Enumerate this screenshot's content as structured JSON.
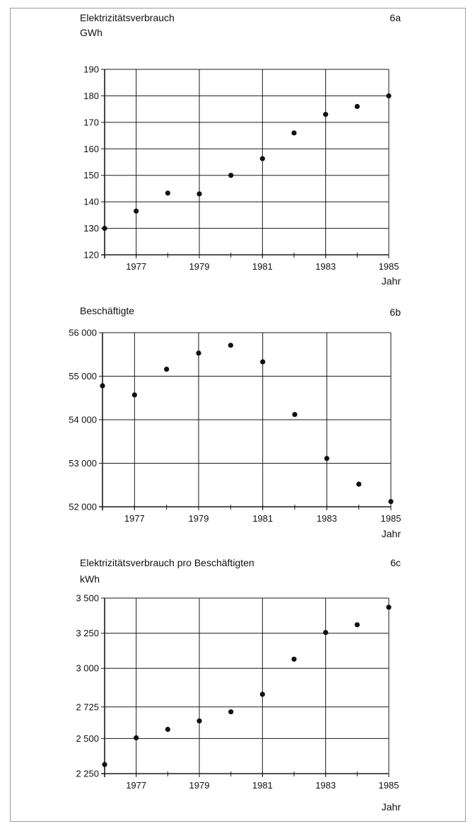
{
  "chart_data": [
    {
      "type": "scatter",
      "title": "Elektrizitätsverbrauch",
      "panel_label": "6a",
      "ylabel": "GWh",
      "xlabel": "Jahr",
      "x": [
        1976,
        1977,
        1978,
        1979,
        1980,
        1981,
        1982,
        1983,
        1984,
        1985
      ],
      "values": [
        130,
        136.5,
        143.3,
        143,
        150,
        156.3,
        166,
        173,
        176,
        180
      ],
      "ylim": [
        120,
        190
      ],
      "xlim": [
        1976,
        1985
      ],
      "yticks": [
        120,
        130,
        140,
        150,
        160,
        170,
        180,
        190
      ],
      "ytick_labels": [
        "120",
        "130",
        "140",
        "150",
        "160",
        "170",
        "180",
        "190"
      ],
      "xticks": [
        1977,
        1979,
        1981,
        1983,
        1985
      ],
      "xtick_labels": [
        "1977",
        "1979",
        "1981",
        "1983",
        "1985"
      ],
      "grid": true
    },
    {
      "type": "scatter",
      "title": "Beschäftigte",
      "panel_label": "6b",
      "ylabel": "",
      "xlabel": "Jahr",
      "x": [
        1976,
        1977,
        1978,
        1979,
        1980,
        1981,
        1982,
        1983,
        1984,
        1985
      ],
      "values": [
        54780,
        54570,
        55160,
        55530,
        55710,
        55330,
        54120,
        53110,
        52520,
        52120
      ],
      "ylim": [
        52000,
        56000
      ],
      "xlim": [
        1976,
        1985
      ],
      "yticks": [
        52000,
        53000,
        54000,
        55000,
        56000
      ],
      "ytick_labels": [
        "52 000",
        "53 000",
        "54 000",
        "55 000",
        "56 000"
      ],
      "xticks": [
        1977,
        1979,
        1981,
        1983,
        1985
      ],
      "xtick_labels": [
        "1977",
        "1979",
        "1981",
        "1983",
        "1985"
      ],
      "grid": true
    },
    {
      "type": "scatter",
      "title": "Elektrizitätsverbrauch pro Beschäftigten",
      "panel_label": "6c",
      "ylabel": "kWh",
      "xlabel": "Jahr",
      "x": [
        1976,
        1977,
        1978,
        1979,
        1980,
        1981,
        1982,
        1983,
        1984,
        1985
      ],
      "values": [
        2315,
        2505,
        2565,
        2625,
        2690,
        2815,
        3065,
        3255,
        3310,
        3435
      ],
      "ylim": [
        2250,
        3500
      ],
      "xlim": [
        1976,
        1985
      ],
      "yticks": [
        2250,
        2500,
        2725,
        3000,
        3250,
        3500
      ],
      "ytick_labels": [
        "2 250",
        "2 500",
        "2 725",
        "3 000",
        "3 250",
        "3 500"
      ],
      "xticks": [
        1977,
        1979,
        1981,
        1983,
        1985
      ],
      "xtick_labels": [
        "1977",
        "1979",
        "1981",
        "1983",
        "1985"
      ],
      "grid": true
    }
  ]
}
